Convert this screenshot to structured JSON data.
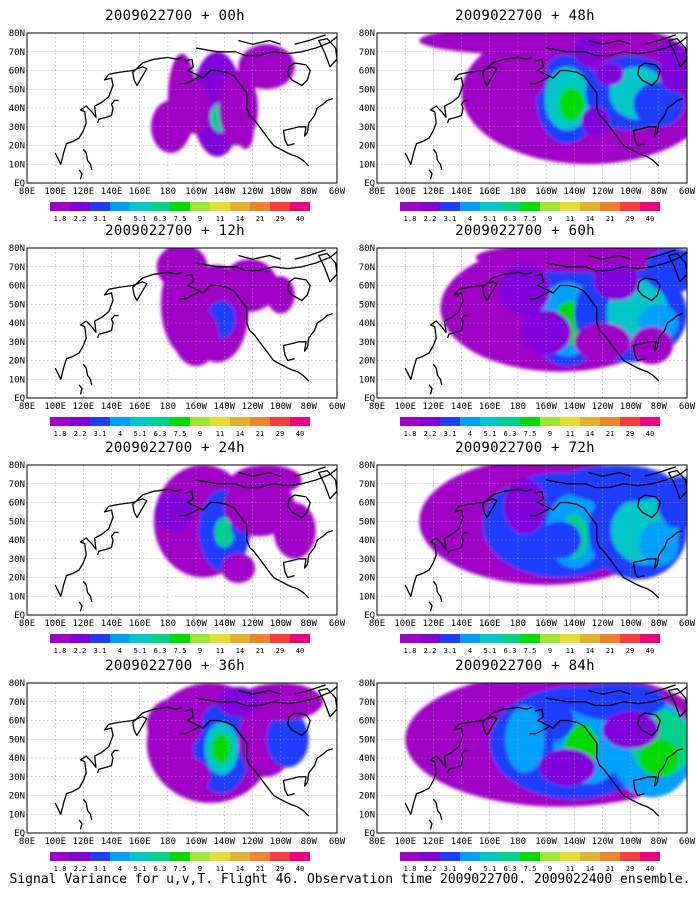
{
  "panels": [
    {
      "title": "2009022700 + 00h",
      "blobs": [
        [
          -170,
          45,
          10,
          24,
          1
        ],
        [
          -145,
          42,
          18,
          28,
          2
        ],
        [
          -142,
          35,
          8,
          8,
          6
        ],
        [
          -130,
          40,
          14,
          20,
          1
        ],
        [
          -178,
          30,
          14,
          14,
          1
        ],
        [
          -160,
          40,
          10,
          14,
          1
        ],
        [
          -110,
          62,
          20,
          12,
          1
        ],
        [
          -125,
          28,
          6,
          10,
          1
        ]
      ]
    },
    {
      "title": "2009022700 + 48h",
      "blobs": [
        [
          -145,
          50,
          40,
          30,
          1
        ],
        [
          -130,
          48,
          90,
          38,
          1
        ],
        [
          -145,
          45,
          22,
          24,
          3
        ],
        [
          -145,
          45,
          16,
          17,
          5
        ],
        [
          -142,
          42,
          9,
          9,
          7
        ],
        [
          -100,
          48,
          32,
          20,
          3
        ],
        [
          -95,
          48,
          20,
          14,
          5
        ],
        [
          -80,
          42,
          18,
          12,
          3
        ],
        [
          -160,
          76,
          90,
          8,
          1
        ],
        [
          -175,
          60,
          16,
          16,
          1
        ],
        [
          -130,
          70,
          10,
          8,
          2
        ],
        [
          -115,
          58,
          10,
          6,
          2
        ],
        [
          -65,
          58,
          15,
          10,
          2
        ],
        [
          -72,
          70,
          10,
          6,
          2
        ],
        [
          -125,
          33,
          10,
          8,
          2
        ]
      ]
    },
    {
      "title": "2009022700 + 12h",
      "blobs": [
        [
          -165,
          50,
          20,
          28,
          1
        ],
        [
          -145,
          45,
          22,
          26,
          1
        ],
        [
          -142,
          42,
          10,
          10,
          3
        ],
        [
          -160,
          33,
          16,
          16,
          1
        ],
        [
          -122,
          60,
          20,
          14,
          1
        ],
        [
          -100,
          55,
          10,
          10,
          1
        ],
        [
          -170,
          70,
          18,
          12,
          1
        ]
      ]
    },
    {
      "title": "2009022700 + 60h",
      "blobs": [
        [
          -150,
          48,
          85,
          34,
          1
        ],
        [
          -145,
          45,
          28,
          28,
          3
        ],
        [
          -145,
          42,
          20,
          20,
          4
        ],
        [
          -143,
          40,
          11,
          12,
          7
        ],
        [
          -100,
          45,
          40,
          26,
          3
        ],
        [
          -95,
          45,
          22,
          18,
          5
        ],
        [
          -80,
          40,
          14,
          10,
          4
        ],
        [
          -130,
          75,
          80,
          8,
          1
        ],
        [
          -70,
          68,
          20,
          12,
          3
        ],
        [
          -175,
          58,
          18,
          14,
          2
        ],
        [
          -110,
          62,
          16,
          10,
          2
        ],
        [
          -160,
          35,
          18,
          12,
          2
        ],
        [
          -120,
          30,
          20,
          10,
          1
        ],
        [
          -85,
          28,
          15,
          10,
          1
        ]
      ]
    },
    {
      "title": "2009022700 + 24h",
      "blobs": [
        [
          -155,
          50,
          35,
          30,
          1
        ],
        [
          -140,
          45,
          18,
          22,
          3
        ],
        [
          -140,
          44,
          7,
          8,
          6
        ],
        [
          -128,
          50,
          8,
          10,
          3
        ],
        [
          -170,
          40,
          12,
          12,
          1
        ],
        [
          -175,
          55,
          14,
          10,
          2
        ],
        [
          -115,
          58,
          25,
          16,
          1
        ],
        [
          -90,
          45,
          15,
          15,
          1
        ],
        [
          -110,
          72,
          25,
          8,
          1
        ],
        [
          -130,
          25,
          12,
          8,
          1
        ]
      ]
    },
    {
      "title": "2009022700 + 72h",
      "blobs": [
        [
          -160,
          50,
          90,
          34,
          1
        ],
        [
          -150,
          48,
          55,
          28,
          3
        ],
        [
          -140,
          45,
          20,
          20,
          4
        ],
        [
          -140,
          42,
          10,
          12,
          6
        ],
        [
          -95,
          45,
          35,
          26,
          3
        ],
        [
          -90,
          45,
          24,
          18,
          5
        ],
        [
          -80,
          38,
          14,
          12,
          4
        ],
        [
          -110,
          70,
          40,
          10,
          3
        ],
        [
          -65,
          60,
          16,
          14,
          3
        ],
        [
          -150,
          40,
          15,
          10,
          3
        ],
        [
          -175,
          58,
          15,
          15,
          2
        ]
      ]
    },
    {
      "title": "2009022700 + 36h",
      "blobs": [
        [
          -150,
          48,
          45,
          32,
          1
        ],
        [
          -142,
          45,
          20,
          24,
          3
        ],
        [
          -142,
          45,
          12,
          14,
          5
        ],
        [
          -142,
          45,
          7,
          8,
          7
        ],
        [
          -110,
          50,
          20,
          20,
          1
        ],
        [
          -95,
          50,
          15,
          15,
          3
        ],
        [
          -100,
          70,
          30,
          10,
          1
        ],
        [
          -130,
          70,
          15,
          8,
          2
        ],
        [
          -175,
          58,
          20,
          14,
          1
        ],
        [
          -165,
          30,
          15,
          10,
          1
        ]
      ]
    },
    {
      "title": "2009022700 + 84h",
      "blobs": [
        [
          -150,
          50,
          110,
          36,
          1
        ],
        [
          -140,
          48,
          60,
          30,
          3
        ],
        [
          -130,
          48,
          25,
          22,
          4
        ],
        [
          -135,
          46,
          12,
          12,
          7
        ],
        [
          -85,
          45,
          30,
          26,
          4
        ],
        [
          -78,
          48,
          22,
          18,
          6
        ],
        [
          -80,
          40,
          14,
          10,
          7
        ],
        [
          -160,
          60,
          20,
          12,
          3
        ],
        [
          -175,
          50,
          14,
          18,
          4
        ],
        [
          -110,
          70,
          35,
          10,
          3
        ],
        [
          -100,
          55,
          20,
          10,
          2
        ],
        [
          -145,
          35,
          20,
          10,
          2
        ]
      ]
    }
  ],
  "longitude_labels": [
    "80E",
    "100E",
    "120E",
    "140E",
    "160E",
    "180",
    "160W",
    "140W",
    "120W",
    "100W",
    "80W",
    "60W"
  ],
  "latitude_labels": [
    "EQ",
    "10N",
    "20N",
    "30N",
    "40N",
    "50N",
    "60N",
    "70N",
    "80N"
  ],
  "legend": {
    "labels": [
      "1.8",
      "2.2",
      "3.1",
      "4",
      "5.1",
      "6.3",
      "7.5",
      "9",
      "11",
      "14",
      "21",
      "29",
      "40"
    ],
    "colors": [
      "#a000c8",
      "#8200dc",
      "#1e3cff",
      "#00a0ff",
      "#00c8c8",
      "#00d28c",
      "#00dc00",
      "#a0e632",
      "#e6dc32",
      "#e6af2d",
      "#f08228",
      "#fa3c3c",
      "#f00082"
    ]
  },
  "footer": "Signal Variance for u,v,T. Flight 46. Observation time 2009022700. 2009022400 ensemble."
}
